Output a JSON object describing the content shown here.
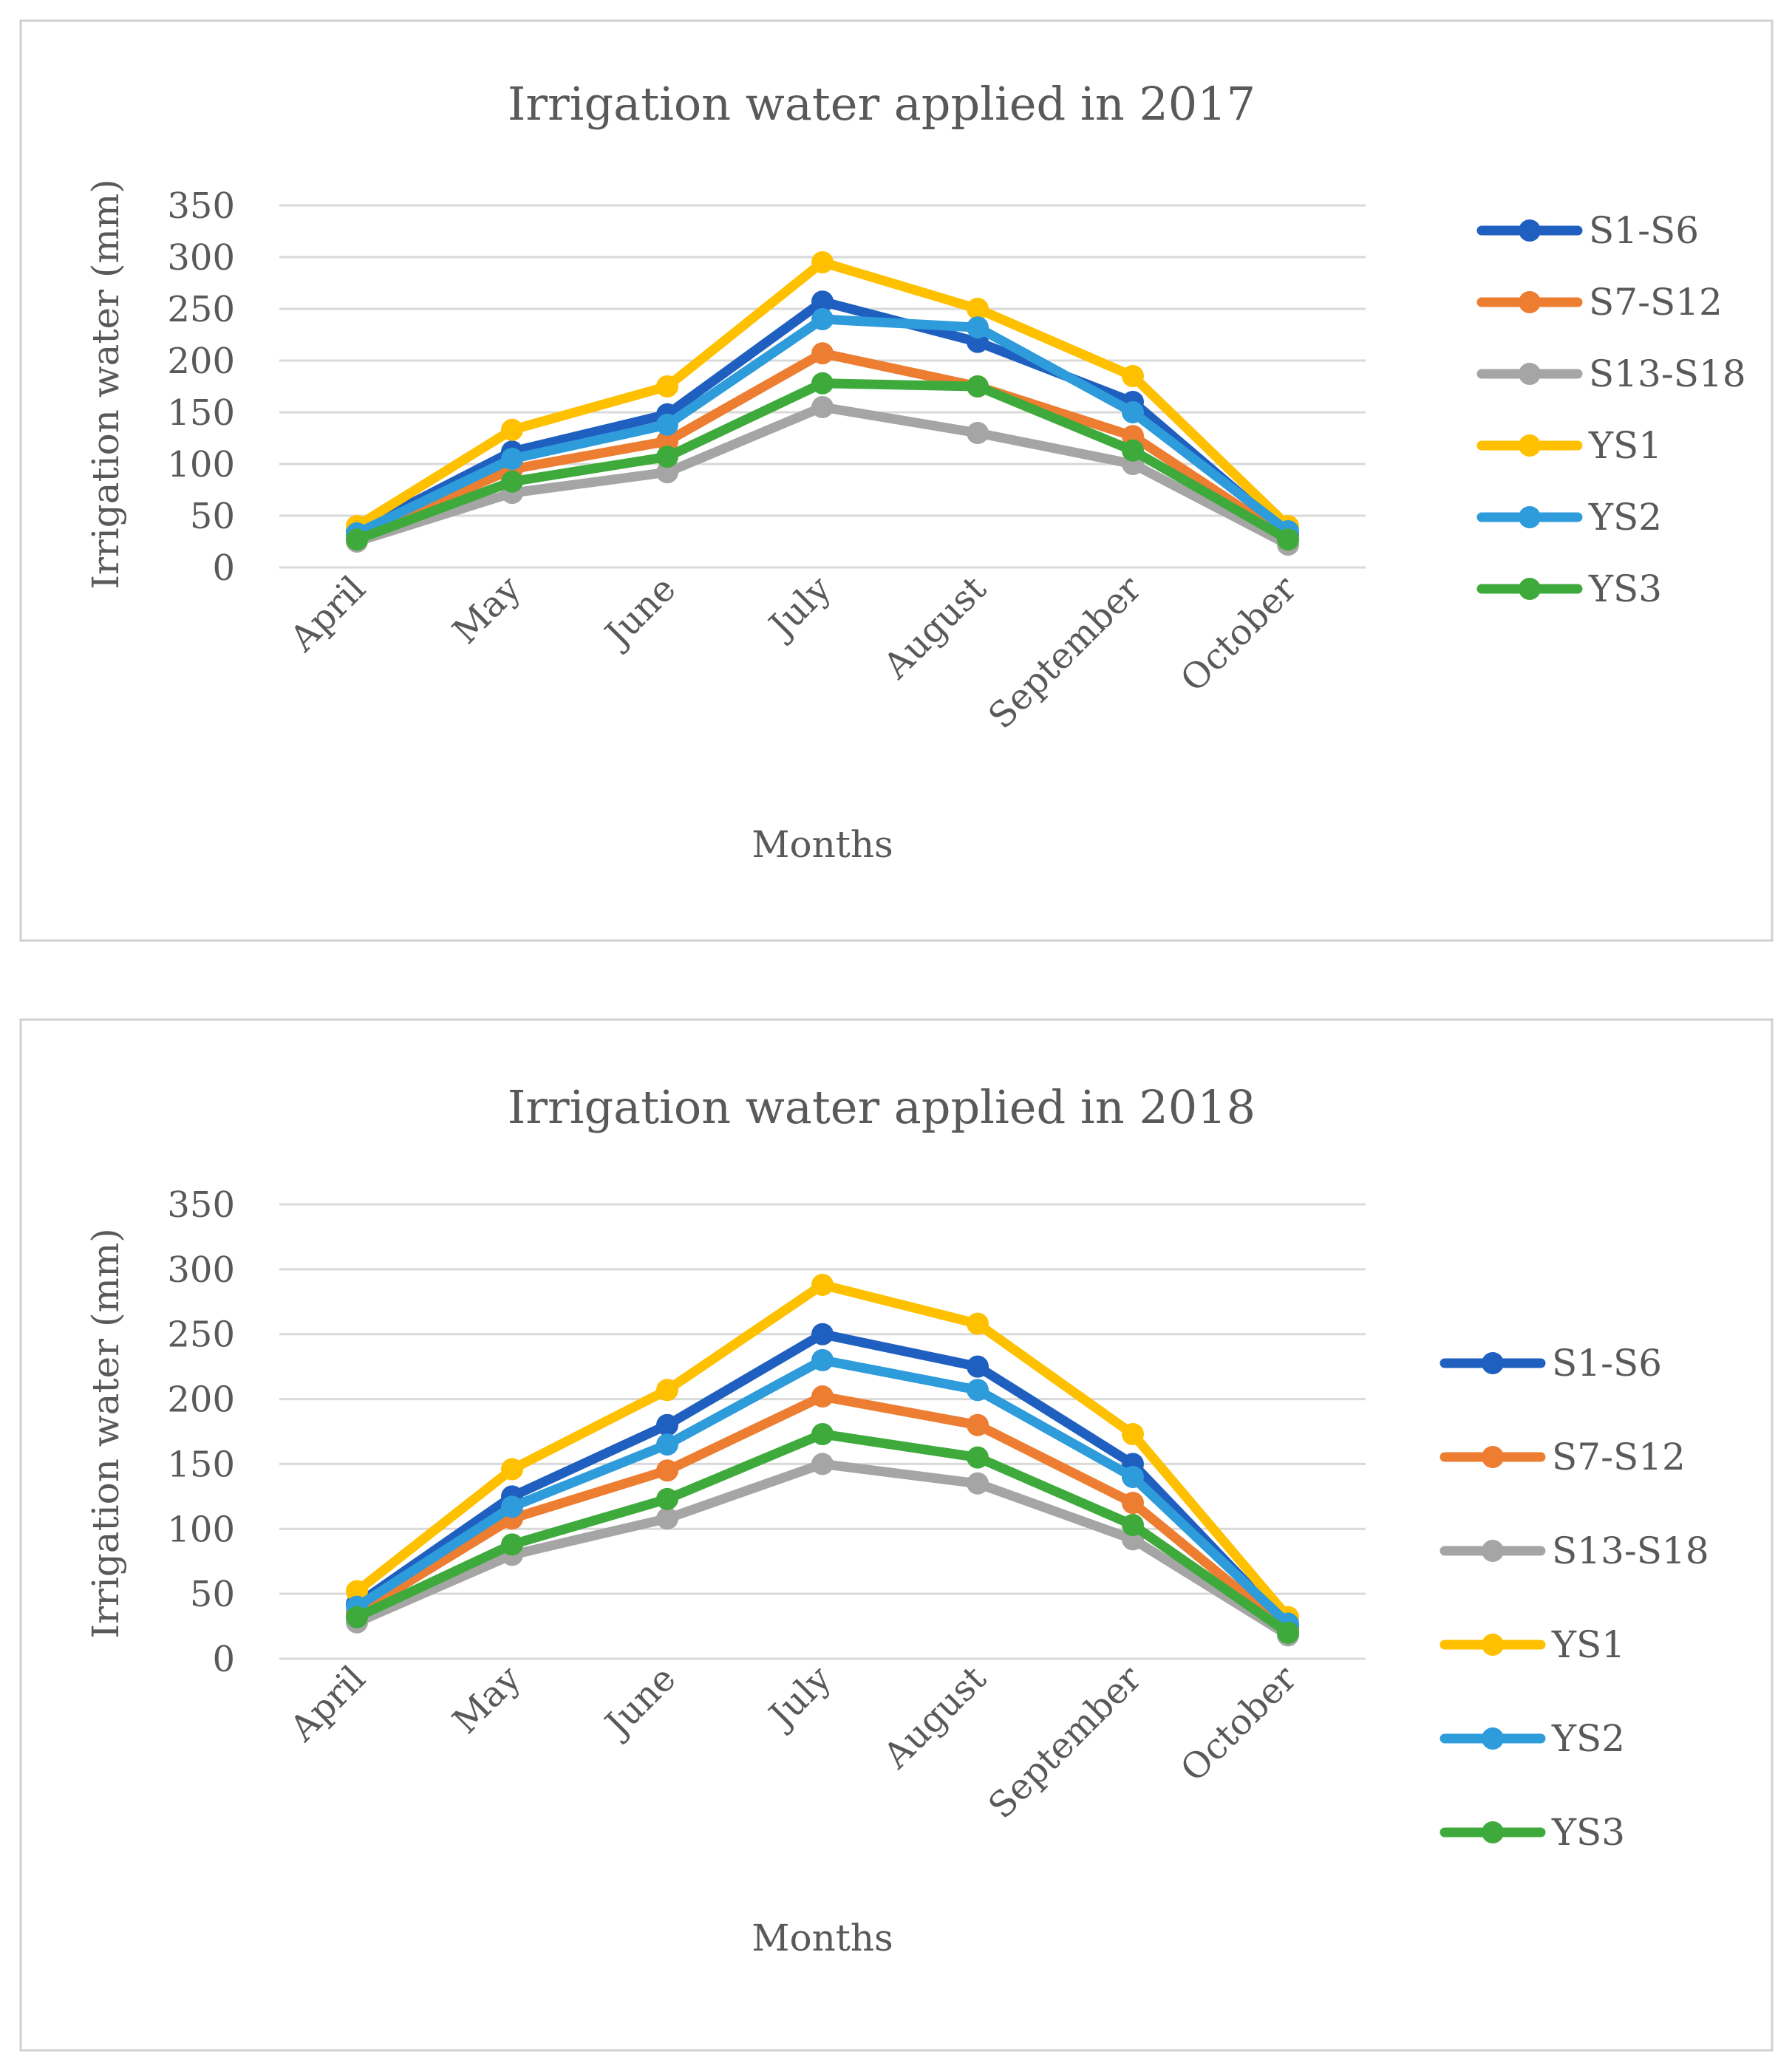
{
  "chart_data": [
    {
      "type": "line",
      "title": "Irrigation water applied in 2017",
      "xlabel": "Months",
      "ylabel": "Irrigation water (mm)",
      "ylim": [
        0,
        350
      ],
      "yticks": [
        0,
        50,
        100,
        150,
        200,
        250,
        300,
        350
      ],
      "grid": true,
      "legend": "right",
      "categories": [
        "April",
        "May",
        "June",
        "July",
        "August",
        "September",
        "October"
      ],
      "series": [
        {
          "name": "S1-S6",
          "color": "#1F5FBF",
          "values": [
            35,
            112,
            148,
            257,
            218,
            160,
            32
          ]
        },
        {
          "name": "S7-S12",
          "color": "#ED7D31",
          "values": [
            30,
            95,
            122,
            207,
            175,
            127,
            28
          ]
        },
        {
          "name": "S13-S18",
          "color": "#A5A5A5",
          "values": [
            25,
            72,
            92,
            155,
            130,
            100,
            22
          ]
        },
        {
          "name": "YS1",
          "color": "#FFC000",
          "values": [
            40,
            133,
            175,
            295,
            250,
            185,
            40
          ]
        },
        {
          "name": "YS2",
          "color": "#2E9BDB",
          "values": [
            33,
            105,
            138,
            240,
            232,
            150,
            35
          ]
        },
        {
          "name": "YS3",
          "color": "#3FAA3C",
          "values": [
            27,
            83,
            107,
            178,
            175,
            113,
            27
          ]
        }
      ]
    },
    {
      "type": "line",
      "title": "Irrigation water applied in 2018",
      "xlabel": "Months",
      "ylabel": "Irrigation water (mm)",
      "ylim": [
        0,
        350
      ],
      "yticks": [
        0,
        50,
        100,
        150,
        200,
        250,
        300,
        350
      ],
      "grid": true,
      "legend": "right",
      "categories": [
        "April",
        "May",
        "June",
        "July",
        "August",
        "September",
        "October"
      ],
      "series": [
        {
          "name": "S1-S6",
          "color": "#1F5FBF",
          "values": [
            42,
            125,
            180,
            250,
            225,
            150,
            25
          ]
        },
        {
          "name": "S7-S12",
          "color": "#ED7D31",
          "values": [
            35,
            108,
            145,
            202,
            180,
            120,
            22
          ]
        },
        {
          "name": "S13-S18",
          "color": "#A5A5A5",
          "values": [
            28,
            80,
            108,
            150,
            135,
            92,
            18
          ]
        },
        {
          "name": "YS1",
          "color": "#FFC000",
          "values": [
            52,
            146,
            207,
            288,
            258,
            173,
            32
          ]
        },
        {
          "name": "YS2",
          "color": "#2E9BDB",
          "values": [
            40,
            117,
            165,
            230,
            207,
            140,
            27
          ]
        },
        {
          "name": "YS3",
          "color": "#3FAA3C",
          "values": [
            32,
            88,
            123,
            173,
            155,
            103,
            20
          ]
        }
      ]
    }
  ]
}
